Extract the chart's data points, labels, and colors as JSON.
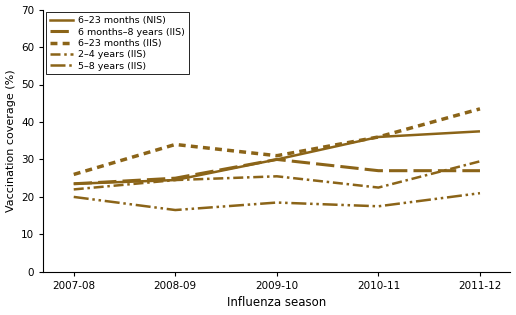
{
  "seasons": [
    "2007-08",
    "2008-09",
    "2009-10",
    "2010-11",
    "2011-12"
  ],
  "series": [
    {
      "label": "6–23 months (NIS)",
      "values": [
        23.5,
        24.5,
        30.0,
        36.0,
        37.5
      ],
      "linestyle": "solid",
      "linewidth": 1.8
    },
    {
      "label": "6 months–8 years (IIS)",
      "values": [
        23.5,
        25.0,
        30.0,
        27.0,
        27.0
      ],
      "linestyle": "dashed",
      "linewidth": 2.2
    },
    {
      "label": "6–23 months (IIS)",
      "values": [
        26.0,
        34.0,
        31.0,
        36.0,
        43.5
      ],
      "linestyle": "dotted",
      "linewidth": 2.5
    },
    {
      "label": "2–4 years (IIS)",
      "values": [
        22.0,
        24.5,
        25.5,
        22.5,
        29.5
      ],
      "linestyle": "densely_dashdotted",
      "linewidth": 1.8
    },
    {
      "label": "5–8 years (IIS)",
      "values": [
        20.0,
        16.5,
        18.5,
        17.5,
        21.0
      ],
      "linestyle": "densely_dashdotdotted",
      "linewidth": 1.8
    }
  ],
  "color": "#8B6418",
  "ylim": [
    0,
    70
  ],
  "yticks": [
    0,
    10,
    20,
    30,
    40,
    50,
    60,
    70
  ],
  "ylabel": "Vaccination coverage (%)",
  "xlabel": "Influenza season",
  "figsize": [
    5.16,
    3.15
  ],
  "dpi": 100
}
